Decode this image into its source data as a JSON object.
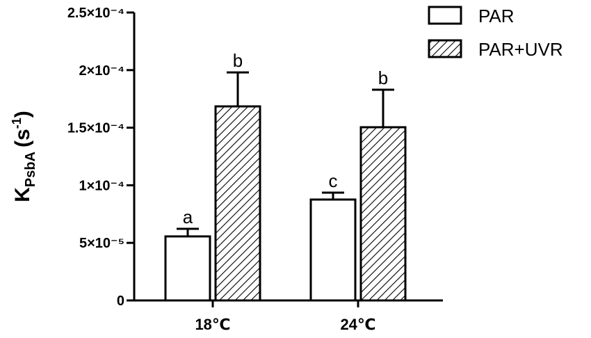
{
  "chart_data": {
    "type": "bar",
    "y_label": [
      "K",
      "PsbA",
      "(s",
      "-1",
      ")"
    ],
    "categories": [
      "18℃",
      "24℃"
    ],
    "series": [
      {
        "name": "PAR",
        "color": "#ffffff",
        "pattern": "none",
        "values": [
          5.56e-05,
          8.76e-05
        ],
        "errors": [
          6.6e-06,
          6e-06
        ],
        "labels": [
          "a",
          "c"
        ]
      },
      {
        "name": "PAR+UVR",
        "color": "#ffffff",
        "pattern": "hatch",
        "values": [
          0.0001685,
          0.0001504
        ],
        "errors": [
          2.95e-05,
          3.26e-05
        ],
        "labels": [
          "b",
          "b"
        ]
      }
    ],
    "ylim": [
      0,
      0.00025
    ],
    "yticks": [
      0,
      {
        "value": 5e-05,
        "label": "5×10⁻⁵"
      },
      {
        "value": 0.0001,
        "label": "1×10⁻⁴"
      },
      {
        "value": 0.00015,
        "label": "1.5×10⁻⁴"
      },
      {
        "value": 0.0002,
        "label": "2×10⁻⁴"
      },
      {
        "value": 0.00025,
        "label": "2.5×10⁻⁴"
      }
    ],
    "grid": false,
    "legend": "top-right"
  }
}
